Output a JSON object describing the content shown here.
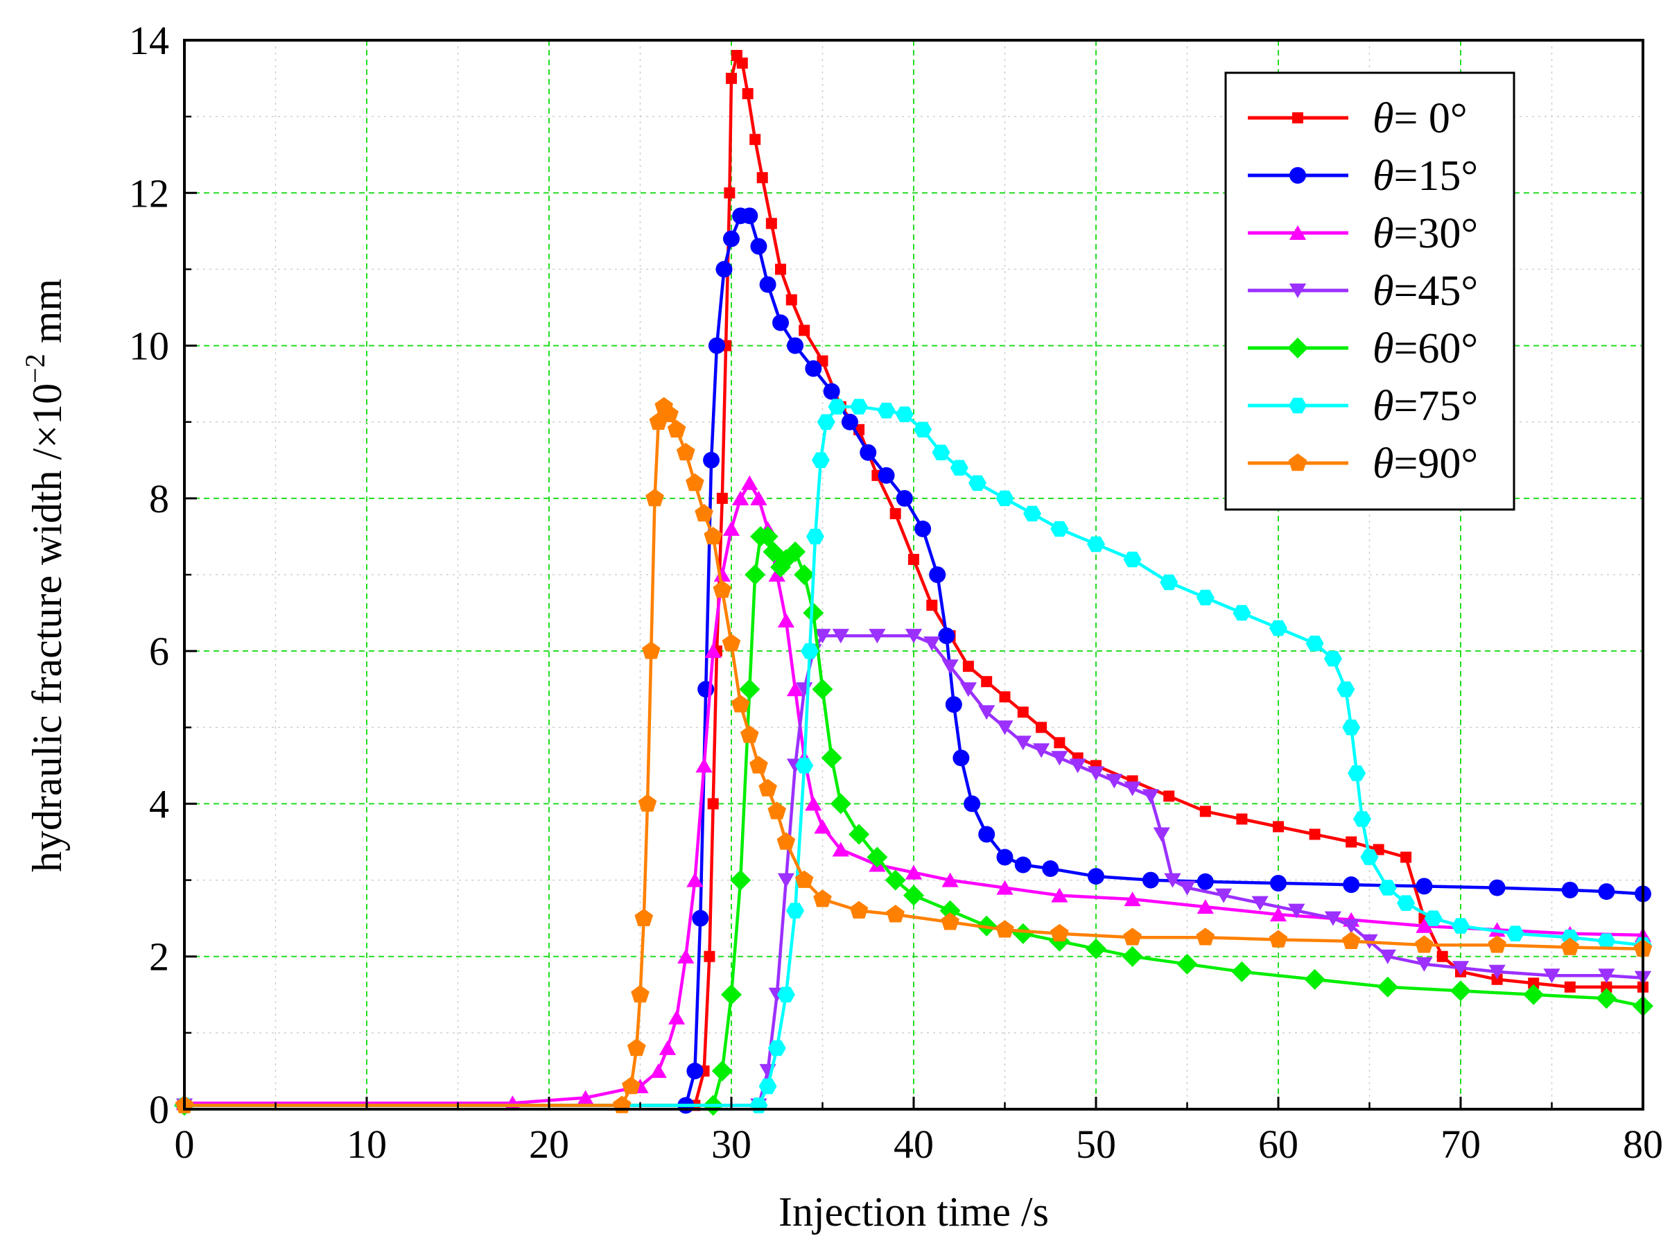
{
  "chart_data": {
    "type": "line",
    "title": "",
    "xlabel": "Injection time /s",
    "ylabel_main": "hydraulic fracture width /×10",
    "ylabel_exp": "−2",
    "ylabel_unit": " mm",
    "xlim": [
      0,
      80
    ],
    "ylim": [
      0,
      14
    ],
    "xticks": [
      0,
      10,
      20,
      30,
      40,
      50,
      60,
      70,
      80
    ],
    "yticks": [
      0,
      2,
      4,
      6,
      8,
      10,
      12,
      14
    ],
    "xtick_labels": [
      "0",
      "10",
      "20",
      "30",
      "40",
      "50",
      "60",
      "70",
      "80"
    ],
    "ytick_labels": [
      "0",
      "2",
      "4",
      "6",
      "8",
      "10",
      "12",
      "14"
    ],
    "grid": true,
    "legend_position": "top-right",
    "series": [
      {
        "name": "θ= 0°",
        "symbol": "θ",
        "suffix": "= 0°",
        "color": "#ff0000",
        "marker": "square",
        "points": [
          [
            0,
            0.05
          ],
          [
            28,
            0.05
          ],
          [
            28.5,
            0.5
          ],
          [
            28.8,
            2
          ],
          [
            29,
            4
          ],
          [
            29.2,
            6
          ],
          [
            29.5,
            8
          ],
          [
            29.7,
            10
          ],
          [
            29.9,
            12
          ],
          [
            30,
            13.5
          ],
          [
            30.3,
            13.8
          ],
          [
            30.6,
            13.7
          ],
          [
            30.9,
            13.3
          ],
          [
            31.3,
            12.7
          ],
          [
            31.7,
            12.2
          ],
          [
            32.2,
            11.6
          ],
          [
            32.7,
            11
          ],
          [
            33.3,
            10.6
          ],
          [
            34,
            10.2
          ],
          [
            35,
            9.8
          ],
          [
            36,
            9.2
          ],
          [
            37,
            8.9
          ],
          [
            38,
            8.3
          ],
          [
            39,
            7.8
          ],
          [
            40,
            7.2
          ],
          [
            41,
            6.6
          ],
          [
            42,
            6.2
          ],
          [
            43,
            5.8
          ],
          [
            44,
            5.6
          ],
          [
            45,
            5.4
          ],
          [
            46,
            5.2
          ],
          [
            47,
            5.0
          ],
          [
            48,
            4.8
          ],
          [
            49,
            4.6
          ],
          [
            50,
            4.5
          ],
          [
            52,
            4.3
          ],
          [
            54,
            4.1
          ],
          [
            56,
            3.9
          ],
          [
            58,
            3.8
          ],
          [
            60,
            3.7
          ],
          [
            62,
            3.6
          ],
          [
            64,
            3.5
          ],
          [
            65.5,
            3.4
          ],
          [
            67,
            3.3
          ],
          [
            68,
            2.5
          ],
          [
            69,
            2.0
          ],
          [
            70,
            1.8
          ],
          [
            72,
            1.7
          ],
          [
            74,
            1.65
          ],
          [
            76,
            1.6
          ],
          [
            78,
            1.6
          ],
          [
            80,
            1.6
          ]
        ]
      },
      {
        "name": "θ=15°",
        "symbol": "θ",
        "suffix": "=15°",
        "color": "#0000ff",
        "marker": "circle",
        "points": [
          [
            0,
            0.05
          ],
          [
            27.5,
            0.05
          ],
          [
            28,
            0.5
          ],
          [
            28.3,
            2.5
          ],
          [
            28.6,
            5.5
          ],
          [
            28.9,
            8.5
          ],
          [
            29.2,
            10
          ],
          [
            29.6,
            11
          ],
          [
            30,
            11.4
          ],
          [
            30.5,
            11.7
          ],
          [
            31,
            11.7
          ],
          [
            31.5,
            11.3
          ],
          [
            32,
            10.8
          ],
          [
            32.7,
            10.3
          ],
          [
            33.5,
            10.0
          ],
          [
            34.5,
            9.7
          ],
          [
            35.5,
            9.4
          ],
          [
            36.5,
            9.0
          ],
          [
            37.5,
            8.6
          ],
          [
            38.5,
            8.3
          ],
          [
            39.5,
            8.0
          ],
          [
            40.5,
            7.6
          ],
          [
            41.3,
            7.0
          ],
          [
            41.8,
            6.2
          ],
          [
            42.2,
            5.3
          ],
          [
            42.6,
            4.6
          ],
          [
            43.2,
            4.0
          ],
          [
            44,
            3.6
          ],
          [
            45,
            3.3
          ],
          [
            46,
            3.2
          ],
          [
            47.5,
            3.15
          ],
          [
            50,
            3.05
          ],
          [
            53,
            3.0
          ],
          [
            56,
            2.98
          ],
          [
            60,
            2.96
          ],
          [
            64,
            2.94
          ],
          [
            68,
            2.92
          ],
          [
            72,
            2.9
          ],
          [
            76,
            2.87
          ],
          [
            78,
            2.85
          ],
          [
            80,
            2.82
          ]
        ]
      },
      {
        "name": "θ=30°",
        "symbol": "θ",
        "suffix": "=30°",
        "color": "#ff00ff",
        "marker": "triangle-up",
        "points": [
          [
            0,
            0.08
          ],
          [
            18,
            0.08
          ],
          [
            22,
            0.15
          ],
          [
            25,
            0.3
          ],
          [
            26,
            0.5
          ],
          [
            26.5,
            0.8
          ],
          [
            27,
            1.2
          ],
          [
            27.5,
            2.0
          ],
          [
            28,
            3.0
          ],
          [
            28.5,
            4.5
          ],
          [
            29,
            6.0
          ],
          [
            29.5,
            7.0
          ],
          [
            30,
            7.6
          ],
          [
            30.5,
            8.0
          ],
          [
            31,
            8.2
          ],
          [
            31.5,
            8.0
          ],
          [
            32,
            7.6
          ],
          [
            32.5,
            7.0
          ],
          [
            33,
            6.4
          ],
          [
            33.5,
            5.5
          ],
          [
            34,
            4.6
          ],
          [
            34.5,
            4.0
          ],
          [
            35,
            3.7
          ],
          [
            36,
            3.4
          ],
          [
            38,
            3.2
          ],
          [
            40,
            3.1
          ],
          [
            42,
            3.0
          ],
          [
            45,
            2.9
          ],
          [
            48,
            2.8
          ],
          [
            52,
            2.75
          ],
          [
            56,
            2.65
          ],
          [
            60,
            2.55
          ],
          [
            64,
            2.48
          ],
          [
            68,
            2.4
          ],
          [
            72,
            2.35
          ],
          [
            76,
            2.3
          ],
          [
            80,
            2.28
          ]
        ]
      },
      {
        "name": "θ=45°",
        "symbol": "θ",
        "suffix": "=45°",
        "color": "#9b30ff",
        "marker": "triangle-down",
        "points": [
          [
            0,
            0.05
          ],
          [
            31.5,
            0.05
          ],
          [
            32,
            0.5
          ],
          [
            32.5,
            1.5
          ],
          [
            33,
            3.0
          ],
          [
            33.5,
            4.5
          ],
          [
            34,
            5.5
          ],
          [
            34.5,
            6.0
          ],
          [
            35,
            6.2
          ],
          [
            36,
            6.2
          ],
          [
            38,
            6.2
          ],
          [
            40,
            6.2
          ],
          [
            41,
            6.1
          ],
          [
            42,
            5.8
          ],
          [
            43,
            5.5
          ],
          [
            44,
            5.2
          ],
          [
            45,
            5.0
          ],
          [
            46,
            4.8
          ],
          [
            47,
            4.7
          ],
          [
            48,
            4.6
          ],
          [
            49,
            4.5
          ],
          [
            50,
            4.4
          ],
          [
            51,
            4.3
          ],
          [
            52,
            4.2
          ],
          [
            53,
            4.1
          ],
          [
            53.6,
            3.6
          ],
          [
            54.2,
            3.0
          ],
          [
            55,
            2.9
          ],
          [
            57,
            2.8
          ],
          [
            59,
            2.7
          ],
          [
            61,
            2.6
          ],
          [
            63,
            2.5
          ],
          [
            64,
            2.4
          ],
          [
            65,
            2.2
          ],
          [
            66,
            2.0
          ],
          [
            68,
            1.9
          ],
          [
            70,
            1.85
          ],
          [
            72,
            1.8
          ],
          [
            75,
            1.75
          ],
          [
            78,
            1.75
          ],
          [
            80,
            1.72
          ]
        ]
      },
      {
        "name": "θ=60°",
        "symbol": "θ",
        "suffix": "=60°",
        "color": "#00ee00",
        "marker": "diamond",
        "points": [
          [
            0,
            0.05
          ],
          [
            29,
            0.05
          ],
          [
            29.5,
            0.5
          ],
          [
            30,
            1.5
          ],
          [
            30.5,
            3.0
          ],
          [
            31,
            5.5
          ],
          [
            31.3,
            7.0
          ],
          [
            31.6,
            7.5
          ],
          [
            32,
            7.5
          ],
          [
            32.3,
            7.3
          ],
          [
            32.7,
            7.1
          ],
          [
            33,
            7.2
          ],
          [
            33.5,
            7.3
          ],
          [
            34,
            7.0
          ],
          [
            34.5,
            6.5
          ],
          [
            35,
            5.5
          ],
          [
            35.5,
            4.6
          ],
          [
            36,
            4.0
          ],
          [
            37,
            3.6
          ],
          [
            38,
            3.3
          ],
          [
            39,
            3.0
          ],
          [
            40,
            2.8
          ],
          [
            42,
            2.6
          ],
          [
            44,
            2.4
          ],
          [
            46,
            2.3
          ],
          [
            48,
            2.2
          ],
          [
            50,
            2.1
          ],
          [
            52,
            2.0
          ],
          [
            55,
            1.9
          ],
          [
            58,
            1.8
          ],
          [
            62,
            1.7
          ],
          [
            66,
            1.6
          ],
          [
            70,
            1.55
          ],
          [
            74,
            1.5
          ],
          [
            78,
            1.45
          ],
          [
            80,
            1.35
          ]
        ]
      },
      {
        "name": "θ=75°",
        "symbol": "θ",
        "suffix": "=75°",
        "color": "#00ffff",
        "marker": "hexagon",
        "points": [
          [
            0,
            0.05
          ],
          [
            31.5,
            0.05
          ],
          [
            32,
            0.3
          ],
          [
            32.5,
            0.8
          ],
          [
            33,
            1.5
          ],
          [
            33.5,
            2.6
          ],
          [
            34,
            4.5
          ],
          [
            34.3,
            6.0
          ],
          [
            34.6,
            7.5
          ],
          [
            34.9,
            8.5
          ],
          [
            35.2,
            9.0
          ],
          [
            35.8,
            9.2
          ],
          [
            37,
            9.2
          ],
          [
            38.5,
            9.15
          ],
          [
            39.5,
            9.1
          ],
          [
            40.5,
            8.9
          ],
          [
            41.5,
            8.6
          ],
          [
            42.5,
            8.4
          ],
          [
            43.5,
            8.2
          ],
          [
            45,
            8.0
          ],
          [
            46.5,
            7.8
          ],
          [
            48,
            7.6
          ],
          [
            50,
            7.4
          ],
          [
            52,
            7.2
          ],
          [
            54,
            6.9
          ],
          [
            56,
            6.7
          ],
          [
            58,
            6.5
          ],
          [
            60,
            6.3
          ],
          [
            62,
            6.1
          ],
          [
            63,
            5.9
          ],
          [
            63.7,
            5.5
          ],
          [
            64,
            5.0
          ],
          [
            64.3,
            4.4
          ],
          [
            64.6,
            3.8
          ],
          [
            65,
            3.3
          ],
          [
            66,
            2.9
          ],
          [
            67,
            2.7
          ],
          [
            68.5,
            2.5
          ],
          [
            70,
            2.4
          ],
          [
            73,
            2.3
          ],
          [
            76,
            2.25
          ],
          [
            78,
            2.2
          ],
          [
            80,
            2.15
          ]
        ]
      },
      {
        "name": "θ=90°",
        "symbol": "θ",
        "suffix": "=90°",
        "color": "#ff8000",
        "marker": "pentagon",
        "points": [
          [
            0,
            0.05
          ],
          [
            24,
            0.05
          ],
          [
            24.5,
            0.3
          ],
          [
            24.8,
            0.8
          ],
          [
            25,
            1.5
          ],
          [
            25.2,
            2.5
          ],
          [
            25.4,
            4.0
          ],
          [
            25.6,
            6.0
          ],
          [
            25.8,
            8.0
          ],
          [
            26,
            9.0
          ],
          [
            26.3,
            9.2
          ],
          [
            26.6,
            9.1
          ],
          [
            27,
            8.9
          ],
          [
            27.5,
            8.6
          ],
          [
            28,
            8.2
          ],
          [
            28.5,
            7.8
          ],
          [
            29,
            7.5
          ],
          [
            29.5,
            6.8
          ],
          [
            30,
            6.1
          ],
          [
            30.5,
            5.3
          ],
          [
            31,
            4.9
          ],
          [
            31.5,
            4.5
          ],
          [
            32,
            4.2
          ],
          [
            32.5,
            3.9
          ],
          [
            33,
            3.5
          ],
          [
            34,
            3.0
          ],
          [
            35,
            2.75
          ],
          [
            37,
            2.6
          ],
          [
            39,
            2.55
          ],
          [
            42,
            2.45
          ],
          [
            45,
            2.35
          ],
          [
            48,
            2.3
          ],
          [
            52,
            2.25
          ],
          [
            56,
            2.25
          ],
          [
            60,
            2.22
          ],
          [
            64,
            2.2
          ],
          [
            68,
            2.15
          ],
          [
            72,
            2.15
          ],
          [
            76,
            2.12
          ],
          [
            80,
            2.1
          ]
        ]
      }
    ]
  }
}
